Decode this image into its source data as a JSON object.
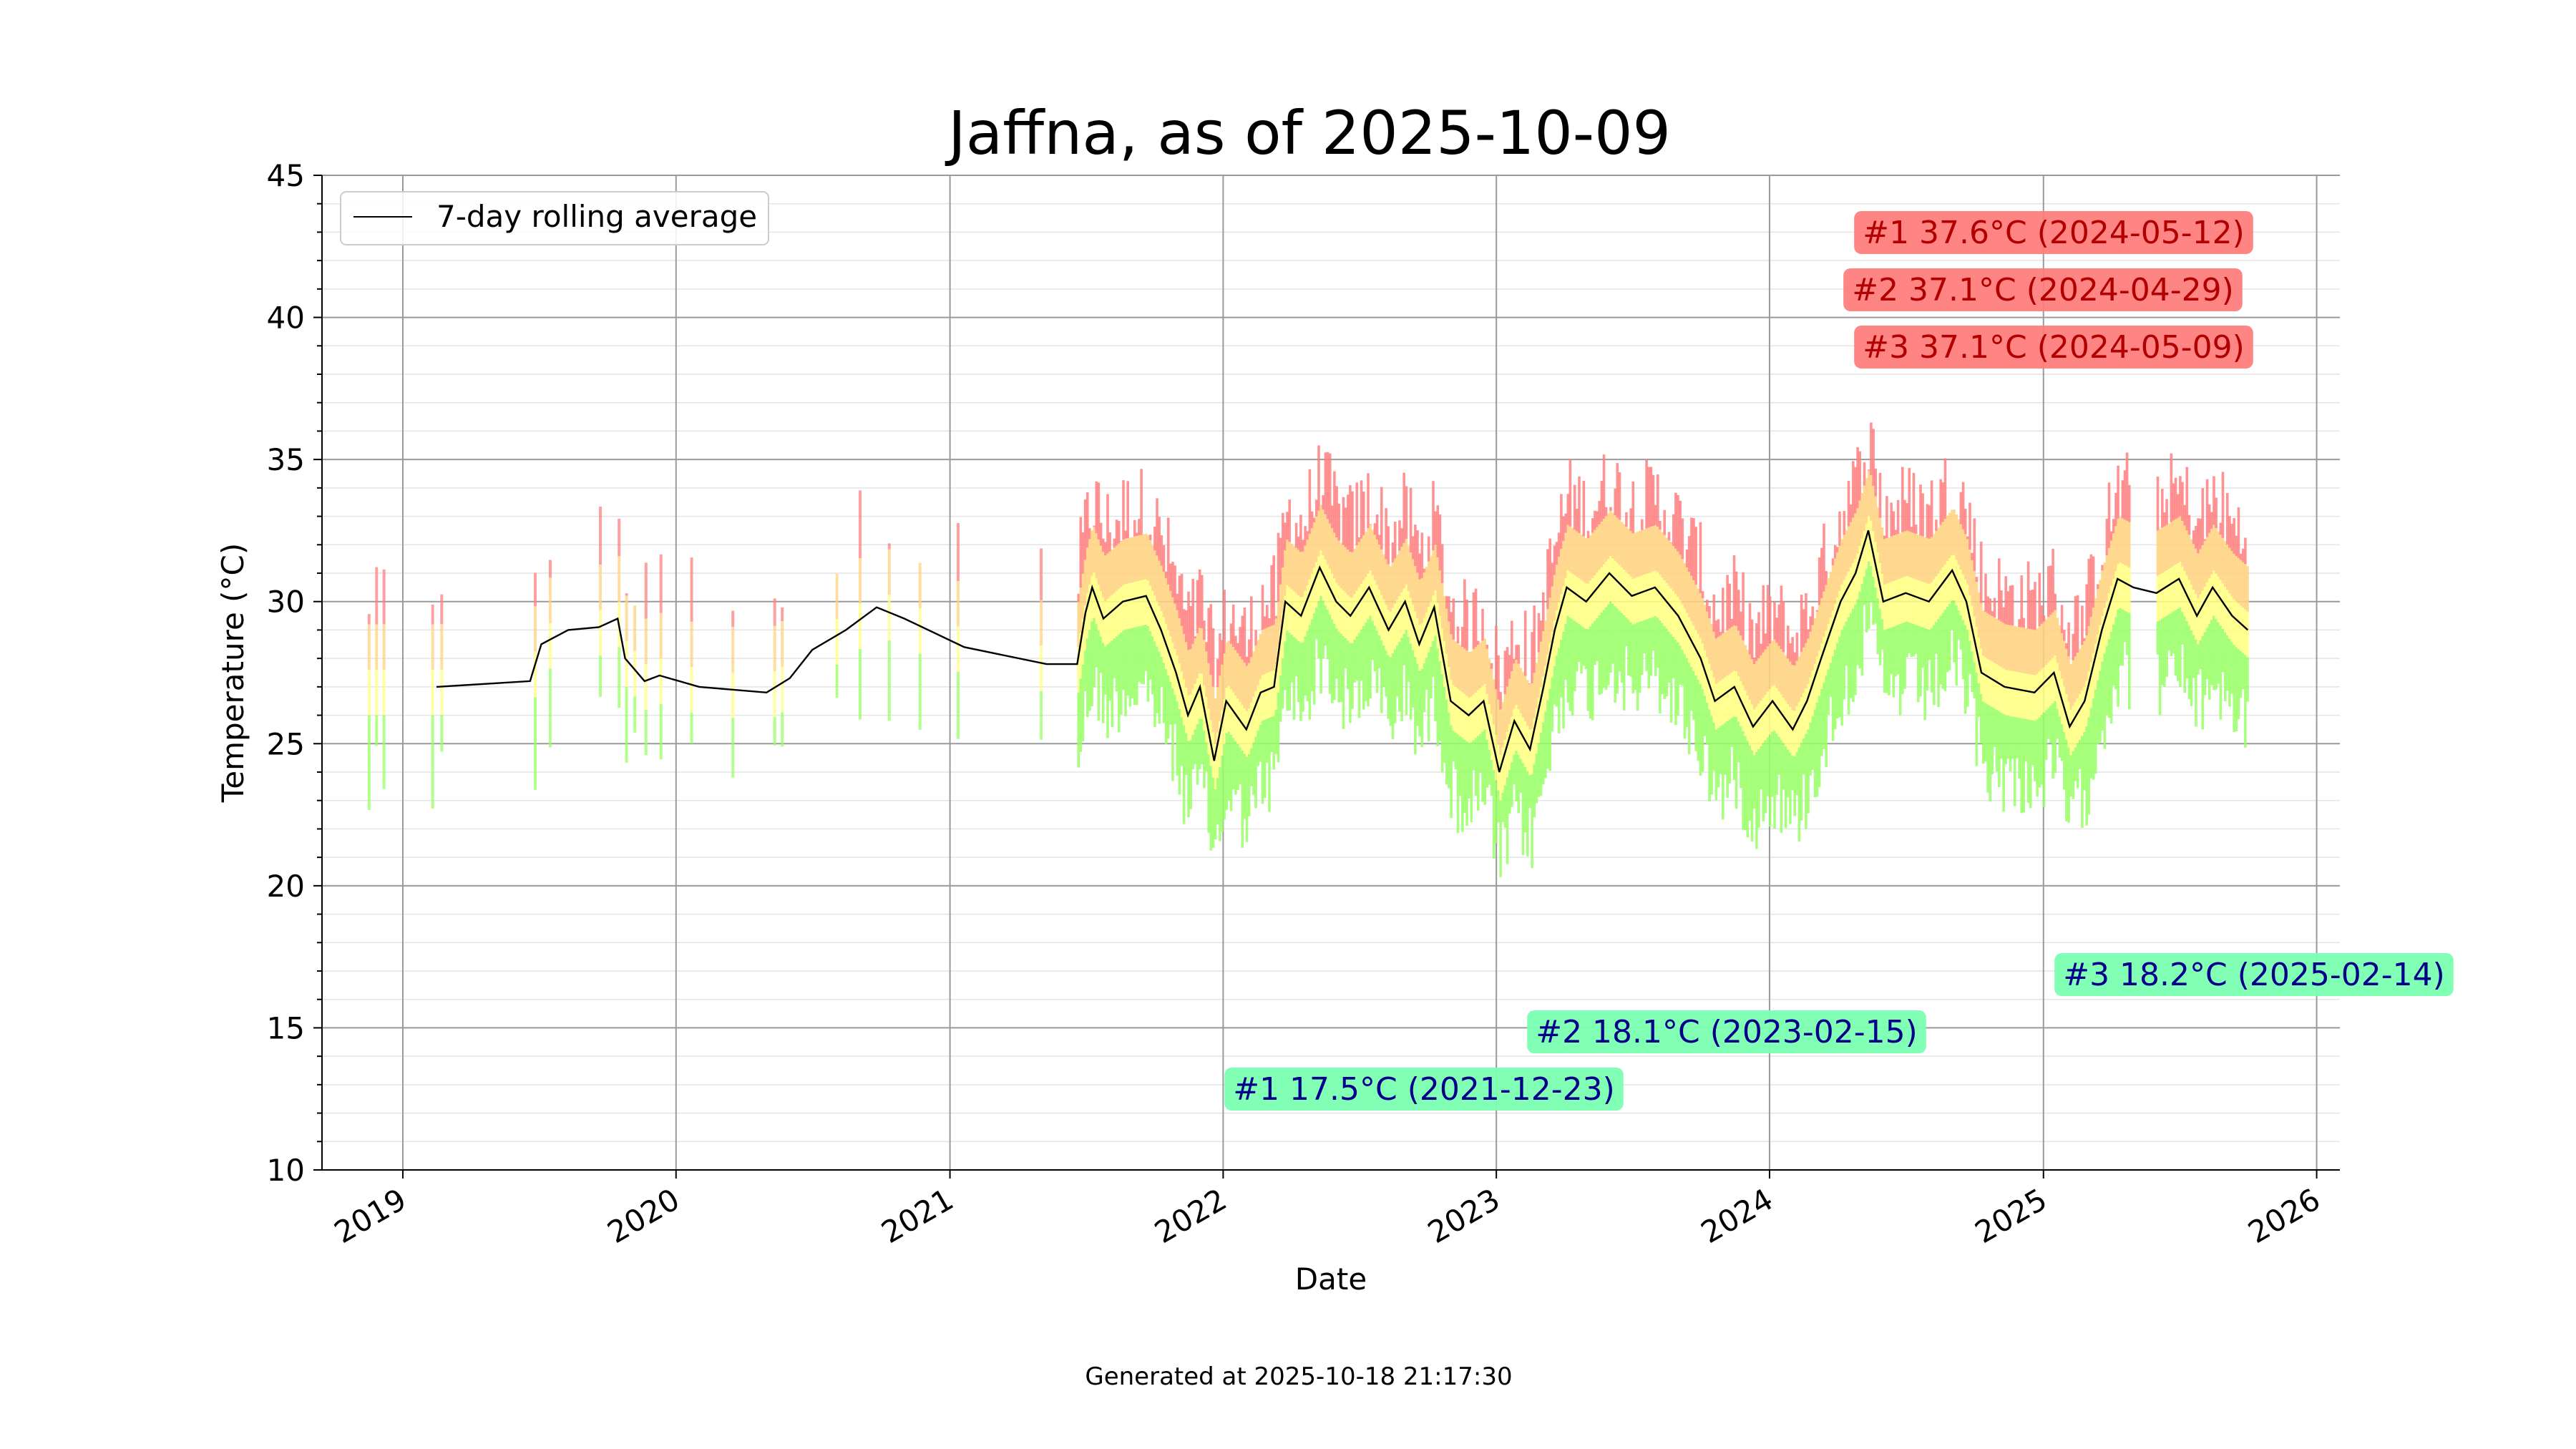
{
  "chart_data": {
    "type": "bar",
    "title": "Jaffna, as of 2025-10-09",
    "xlabel": "Date",
    "ylabel": "Temperature (°C)",
    "xlim": [
      "2018-09-15",
      "2026-02-01"
    ],
    "ylim": [
      10,
      45
    ],
    "y_ticks": [
      10,
      15,
      20,
      25,
      30,
      35,
      40,
      45
    ],
    "y_tick_labels": [
      "10",
      "15",
      "20",
      "25",
      "30",
      "35",
      "40",
      "45"
    ],
    "x_ticks": [
      "2019-01-01",
      "2020-01-01",
      "2021-01-01",
      "2022-01-01",
      "2023-01-01",
      "2024-01-01",
      "2025-01-01",
      "2026-01-01"
    ],
    "x_tick_labels": [
      "2019",
      "2020",
      "2021",
      "2022",
      "2023",
      "2024",
      "2025",
      "2026"
    ],
    "grid": true,
    "legend": {
      "position": "top-left",
      "entries": [
        "7-day rolling average"
      ]
    },
    "series": [
      {
        "name": "7-day rolling average",
        "type": "line",
        "color": "#000000",
        "points": [
          [
            "2019-02-15",
            27.0
          ],
          [
            "2019-06-20",
            27.2
          ],
          [
            "2019-07-05",
            28.5
          ],
          [
            "2019-08-10",
            29.0
          ],
          [
            "2019-09-20",
            29.1
          ],
          [
            "2019-10-15",
            29.4
          ],
          [
            "2019-10-25",
            28.0
          ],
          [
            "2019-11-20",
            27.2
          ],
          [
            "2019-12-10",
            27.4
          ],
          [
            "2020-02-01",
            27.0
          ],
          [
            "2020-05-01",
            26.8
          ],
          [
            "2020-06-01",
            27.3
          ],
          [
            "2020-07-01",
            28.3
          ],
          [
            "2020-08-15",
            29.0
          ],
          [
            "2020-09-25",
            29.8
          ],
          [
            "2020-11-01",
            29.4
          ],
          [
            "2021-01-20",
            28.4
          ],
          [
            "2021-05-10",
            27.8
          ],
          [
            "2021-06-20",
            27.8
          ],
          [
            "2021-07-01",
            29.6
          ],
          [
            "2021-07-10",
            30.5
          ],
          [
            "2021-07-25",
            29.4
          ],
          [
            "2021-08-20",
            30.0
          ],
          [
            "2021-09-20",
            30.2
          ],
          [
            "2021-10-10",
            29.0
          ],
          [
            "2021-10-30",
            27.5
          ],
          [
            "2021-11-15",
            26.0
          ],
          [
            "2021-12-01",
            27.0
          ],
          [
            "2021-12-20",
            24.4
          ],
          [
            "2022-01-05",
            26.5
          ],
          [
            "2022-02-01",
            25.5
          ],
          [
            "2022-02-20",
            26.8
          ],
          [
            "2022-03-10",
            27.0
          ],
          [
            "2022-03-25",
            30.0
          ],
          [
            "2022-04-15",
            29.5
          ],
          [
            "2022-05-10",
            31.2
          ],
          [
            "2022-06-01",
            30.0
          ],
          [
            "2022-06-20",
            29.5
          ],
          [
            "2022-07-15",
            30.5
          ],
          [
            "2022-08-10",
            29.0
          ],
          [
            "2022-09-01",
            30.0
          ],
          [
            "2022-09-20",
            28.5
          ],
          [
            "2022-10-10",
            29.8
          ],
          [
            "2022-11-01",
            26.5
          ],
          [
            "2022-11-25",
            26.0
          ],
          [
            "2022-12-15",
            26.5
          ],
          [
            "2023-01-05",
            24.0
          ],
          [
            "2023-01-25",
            25.8
          ],
          [
            "2023-02-15",
            24.8
          ],
          [
            "2023-03-05",
            27.0
          ],
          [
            "2023-03-20",
            29.0
          ],
          [
            "2023-04-05",
            30.5
          ],
          [
            "2023-05-01",
            30.0
          ],
          [
            "2023-06-01",
            31.0
          ],
          [
            "2023-07-01",
            30.2
          ],
          [
            "2023-08-01",
            30.5
          ],
          [
            "2023-09-01",
            29.5
          ],
          [
            "2023-10-01",
            28.0
          ],
          [
            "2023-10-20",
            26.5
          ],
          [
            "2023-11-15",
            27.0
          ],
          [
            "2023-12-10",
            25.6
          ],
          [
            "2024-01-05",
            26.5
          ],
          [
            "2024-02-01",
            25.5
          ],
          [
            "2024-02-20",
            26.5
          ],
          [
            "2024-03-10",
            28.0
          ],
          [
            "2024-04-05",
            30.0
          ],
          [
            "2024-04-25",
            31.0
          ],
          [
            "2024-05-12",
            32.5
          ],
          [
            "2024-06-01",
            30.0
          ],
          [
            "2024-07-01",
            30.3
          ],
          [
            "2024-08-01",
            30.0
          ],
          [
            "2024-09-01",
            31.1
          ],
          [
            "2024-09-20",
            30.0
          ],
          [
            "2024-10-10",
            27.5
          ],
          [
            "2024-11-10",
            27.0
          ],
          [
            "2024-12-20",
            26.8
          ],
          [
            "2025-01-15",
            27.5
          ],
          [
            "2025-02-05",
            25.6
          ],
          [
            "2025-02-25",
            26.5
          ],
          [
            "2025-03-20",
            29.0
          ],
          [
            "2025-04-10",
            30.8
          ],
          [
            "2025-05-01",
            30.5
          ],
          [
            "2025-06-01",
            30.3
          ],
          [
            "2025-07-01",
            30.8
          ],
          [
            "2025-07-25",
            29.5
          ],
          [
            "2025-08-15",
            30.5
          ],
          [
            "2025-09-10",
            29.5
          ],
          [
            "2025-10-01",
            29.0
          ]
        ]
      }
    ],
    "records": [
      {
        "label": "#1 37.6°C (2024-05-12)",
        "kind": "max",
        "date": "2024-05-12",
        "value": 37.6
      },
      {
        "label": "#2 37.1°C (2024-04-29)",
        "kind": "max",
        "date": "2024-04-29",
        "value": 37.1
      },
      {
        "label": "#3 37.1°C (2024-05-09)",
        "kind": "max",
        "date": "2024-05-09",
        "value": 37.1
      },
      {
        "label": "#1 17.5°C (2021-12-23)",
        "kind": "min",
        "date": "2021-12-23",
        "value": 17.5
      },
      {
        "label": "#2 18.1°C (2023-02-15)",
        "kind": "min",
        "date": "2023-02-15",
        "value": 18.1
      },
      {
        "label": "#3 18.2°C (2025-02-14)",
        "kind": "min",
        "date": "2025-02-14",
        "value": 18.2
      }
    ],
    "colors": {
      "max_box": "#ff7a7a",
      "max_text": "#b00000",
      "min_box": "#7affb0",
      "min_text": "#00008b",
      "hot": "#ff7f7f",
      "warm": "#ffd27f",
      "mild": "#ffff80",
      "cool": "#99ff66"
    }
  },
  "footer": "Generated at 2025-10-18 21:17:30"
}
